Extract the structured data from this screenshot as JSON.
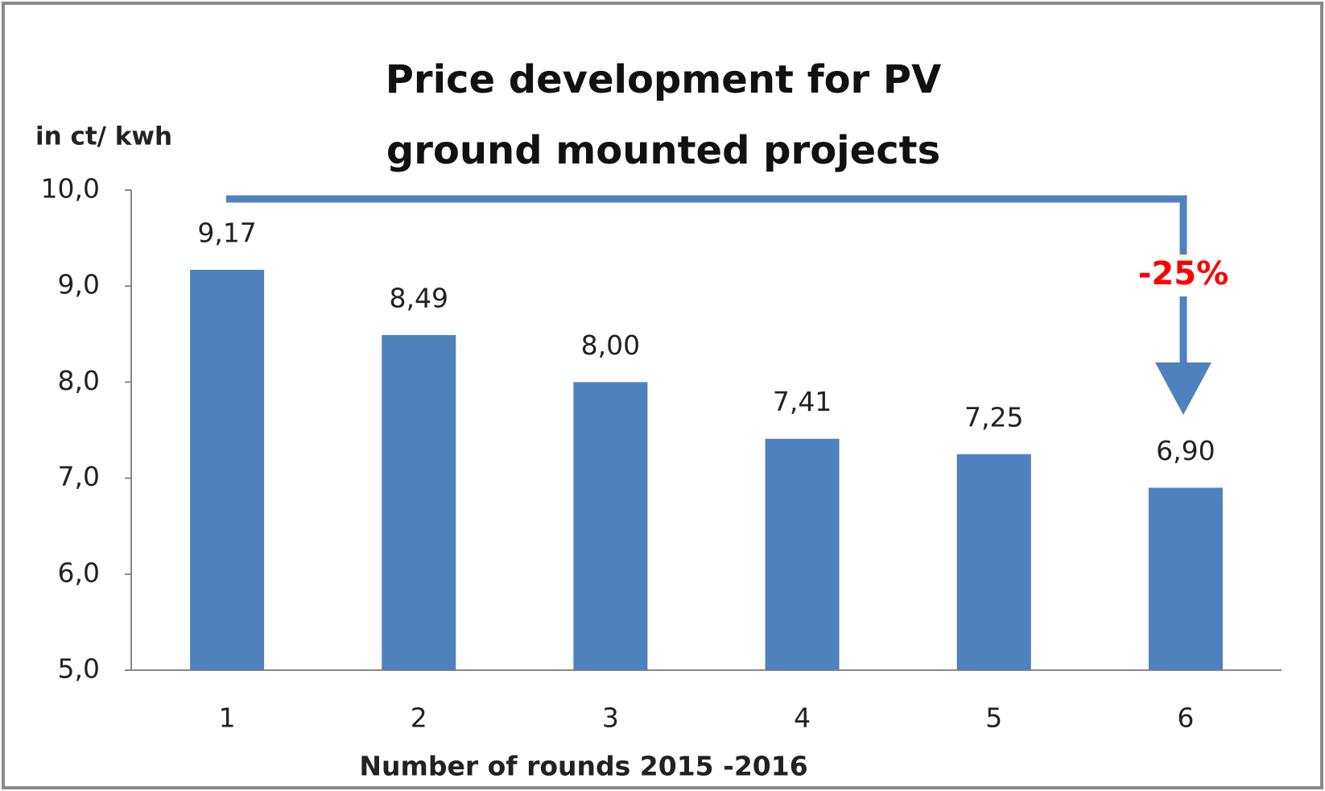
{
  "chart_data": {
    "type": "bar",
    "title": "Price development for PV ground mounted projects",
    "y_axis_label": "in ct/ kwh",
    "x_axis_label": "Number of rounds 2015 -2016",
    "annotation": "-25%",
    "categories": [
      "1",
      "2",
      "3",
      "4",
      "5",
      "6"
    ],
    "values": [
      9.17,
      8.49,
      8.0,
      7.41,
      7.25,
      6.9
    ],
    "value_labels": [
      "9,17",
      "8,49",
      "8,00",
      "7,41",
      "7,25",
      "6,90"
    ],
    "color": "#4f81bd",
    "ylim": [
      5,
      10
    ],
    "yticks": [
      {
        "value": 5,
        "label": "5,0"
      },
      {
        "value": 6,
        "label": "6,0"
      },
      {
        "value": 7,
        "label": "7,0"
      },
      {
        "value": 8,
        "label": "8,0"
      },
      {
        "value": 9,
        "label": "9,0"
      },
      {
        "value": 10,
        "label": "10,0"
      }
    ],
    "grid": false
  }
}
